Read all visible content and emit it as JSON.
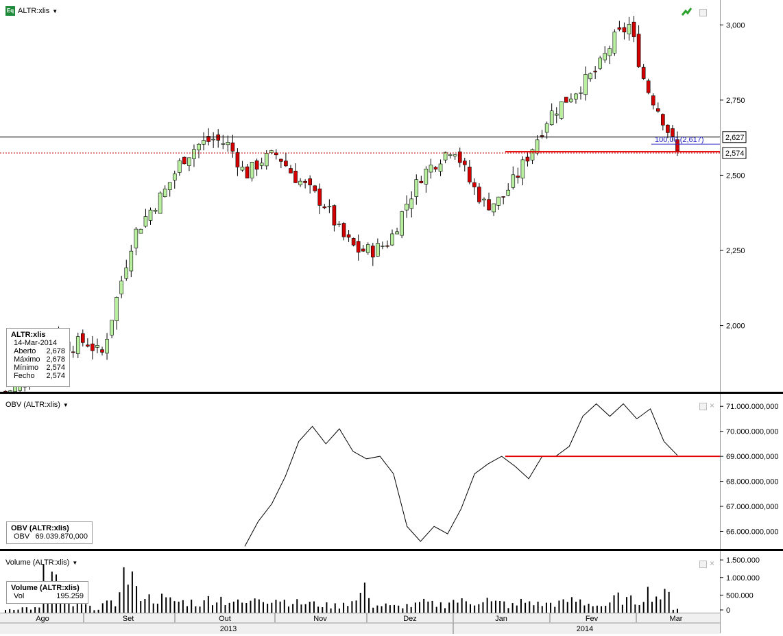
{
  "main": {
    "title": "ALTR:xlis",
    "icon_label": "Eq",
    "icon": "equity-icon",
    "trend_icon": "trend-arrow-icon",
    "y_ticks": [
      "3,000",
      "2,750",
      "2,500",
      "2,250",
      "2,000"
    ],
    "fib_label": "100,00 (2,617)",
    "price_tag_1": "2,627",
    "price_tag_2": "2,574",
    "info": {
      "symbol": "ALTR:xlis",
      "date": "14-Mar-2014",
      "rows": [
        {
          "label": "Aberto",
          "value": "2,678"
        },
        {
          "label": "Máximo",
          "value": "2,678"
        },
        {
          "label": "Mínimo",
          "value": "2,574"
        },
        {
          "label": "Fecho",
          "value": "2,574"
        }
      ]
    }
  },
  "obv": {
    "title": "OBV (ALTR:xlis)",
    "y_ticks": [
      "71.000.000,000",
      "70.000.000,000",
      "69.000.000,000",
      "68.000.000,000",
      "67.000.000,000",
      "66.000.000,000"
    ],
    "info": {
      "name": "OBV (ALTR:xlis)",
      "label": "OBV",
      "value": "69.039.870,000"
    }
  },
  "volume": {
    "title": "Volume (ALTR:xlis)",
    "y_ticks": [
      "1.500.000",
      "1.000.000",
      "500.000",
      "0"
    ],
    "info": {
      "name": "Volume (ALTR:xlis)",
      "label": "Vol",
      "value": "195.259"
    }
  },
  "x_axis": {
    "months": [
      "Ago",
      "Set",
      "Out",
      "Nov",
      "Dez",
      "Jan",
      "Fev",
      "Mar"
    ],
    "years": [
      "2013",
      "2014"
    ]
  },
  "chart_data": [
    {
      "type": "candlestick",
      "x_range": [
        "2013-08",
        "2014-03-14"
      ],
      "ylim": [
        1.78,
        3.06
      ],
      "approx_close_path": [
        1.78,
        1.8,
        1.9,
        1.98,
        1.93,
        1.95,
        1.9,
        2.1,
        2.3,
        2.38,
        2.45,
        2.55,
        2.6,
        2.62,
        2.6,
        2.5,
        2.55,
        2.57,
        2.5,
        2.45,
        2.4,
        2.3,
        2.25,
        2.25,
        2.28,
        2.4,
        2.5,
        2.55,
        2.6,
        2.48,
        2.4,
        2.42,
        2.5,
        2.6,
        2.7,
        2.75,
        2.8,
        2.85,
        2.95,
        3.0,
        2.8,
        2.7,
        2.574
      ],
      "grid": false
    },
    {
      "type": "line",
      "name": "OBV",
      "ylim": [
        65.3,
        71.5
      ],
      "values": [
        65.4,
        66.4,
        67.1,
        68.2,
        69.6,
        70.2,
        69.5,
        70.1,
        69.2,
        68.9,
        69.0,
        68.3,
        66.2,
        65.6,
        66.2,
        65.9,
        66.9,
        68.3,
        68.7,
        69.0,
        68.6,
        68.1,
        69.0,
        69.0,
        69.4,
        70.6,
        71.1,
        70.6,
        71.1,
        70.5,
        70.9,
        69.6,
        69.04
      ],
      "hline": 69.0
    },
    {
      "type": "bar",
      "name": "Volume",
      "ylim": [
        0,
        1600000
      ],
      "values": [
        150000,
        200000,
        180000,
        1500000,
        450000,
        300000,
        200000,
        350000,
        1500000,
        800000,
        600000,
        500000,
        450000,
        400000,
        600000,
        500000,
        400000,
        700000,
        600000,
        500000,
        400000,
        350000,
        300000,
        450000,
        900000,
        300000,
        250000,
        300000,
        400000,
        350000,
        500000,
        450000,
        550000,
        400000,
        300000,
        450000,
        350000,
        400000,
        500000,
        400000,
        300000,
        600000,
        500000,
        850000,
        700000,
        195259
      ]
    }
  ]
}
